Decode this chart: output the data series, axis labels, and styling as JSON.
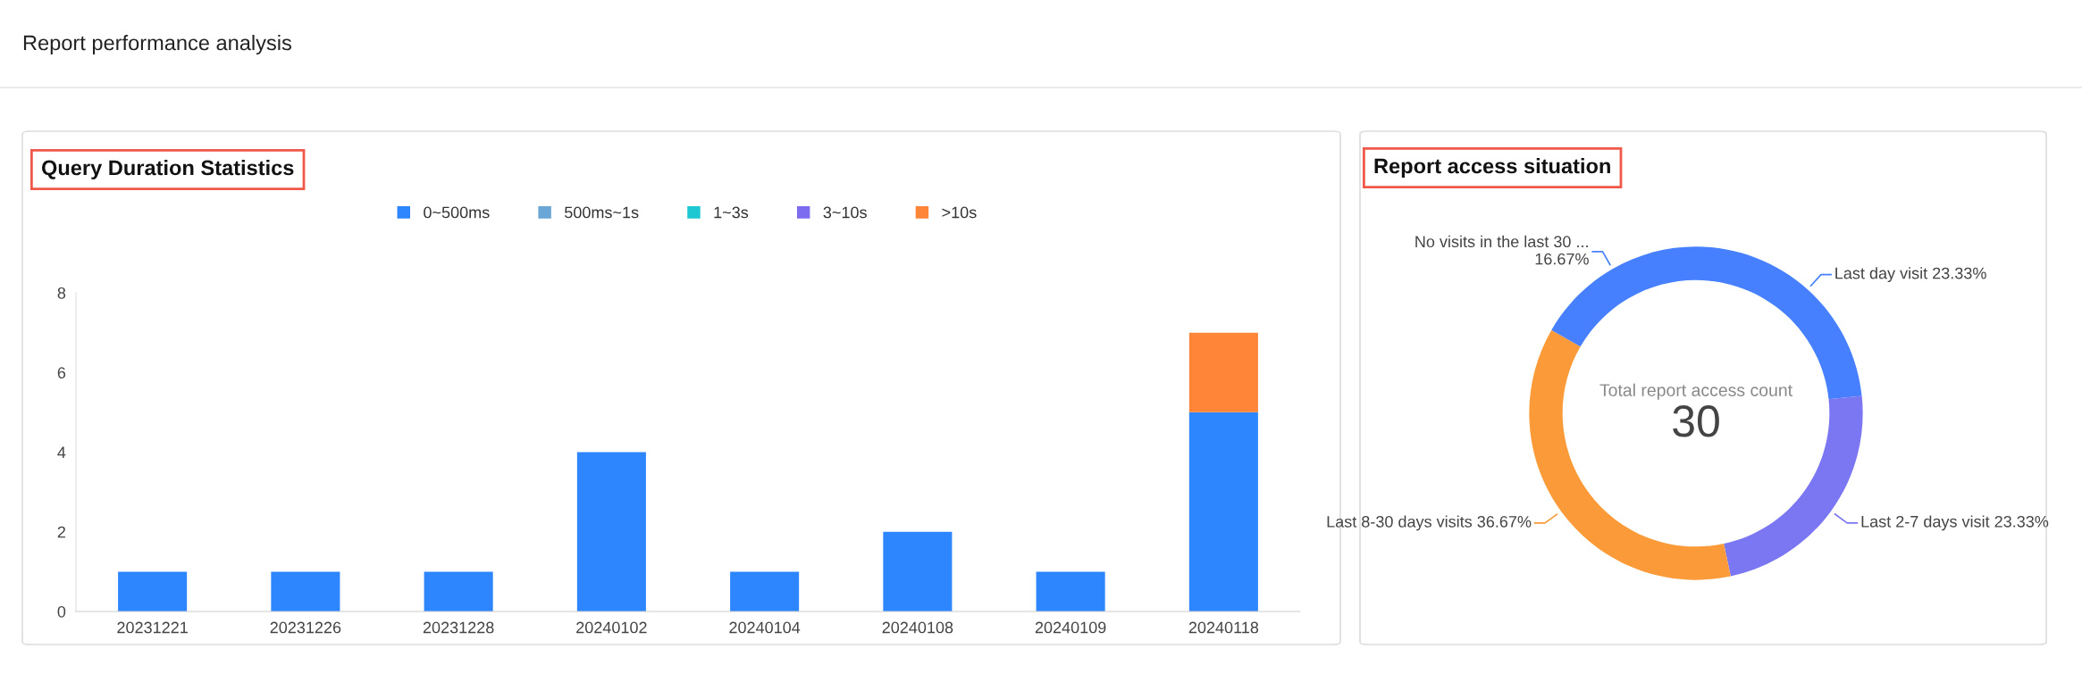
{
  "chart_data": [
    {
      "type": "bar",
      "title": "Query Duration Statistics",
      "stacked": true,
      "legend": "top",
      "grid": false,
      "categories": [
        "20231221",
        "20231226",
        "20231228",
        "20240102",
        "20240104",
        "20240108",
        "20240109",
        "20240118"
      ],
      "series": [
        {
          "name": "0~500ms",
          "color": "#2e86ff",
          "values": [
            1,
            1,
            1,
            4,
            1,
            2,
            1,
            5
          ]
        },
        {
          "name": "500ms~1s",
          "color": "#6aa6d6",
          "values": [
            0,
            0,
            0,
            0,
            0,
            0,
            0,
            0
          ]
        },
        {
          "name": "1~3s",
          "color": "#1ec8d2",
          "values": [
            0,
            0,
            0,
            0,
            0,
            0,
            0,
            0
          ]
        },
        {
          "name": "3~10s",
          "color": "#7b6cf0",
          "values": [
            0,
            0,
            0,
            0,
            0,
            0,
            0,
            0
          ]
        },
        {
          "name": ">10s",
          "color": "#ff8638",
          "values": [
            0,
            0,
            0,
            0,
            0,
            0,
            0,
            2
          ]
        }
      ],
      "ylim": [
        0,
        8
      ],
      "yticks": [
        0,
        2,
        4,
        6,
        8
      ],
      "annotations": [
        "Report performance analysis"
      ]
    },
    {
      "type": "donut",
      "title": "Report access situation",
      "legend": false,
      "categories": [
        "Last day visit",
        "Last 2-7 days visit",
        "Last 8-30 days visits",
        "No visits in the last 30 ..."
      ],
      "values": [
        23.33,
        23.33,
        36.67,
        16.67
      ],
      "value_labels": [
        "23.33%",
        "23.33%",
        "36.67%",
        "16.67%"
      ],
      "colors": [
        "#4680ff",
        "#7b76f2",
        "#fa9a38",
        "#4680ff"
      ],
      "annotations": [
        "Total report access count",
        "30"
      ]
    }
  ]
}
